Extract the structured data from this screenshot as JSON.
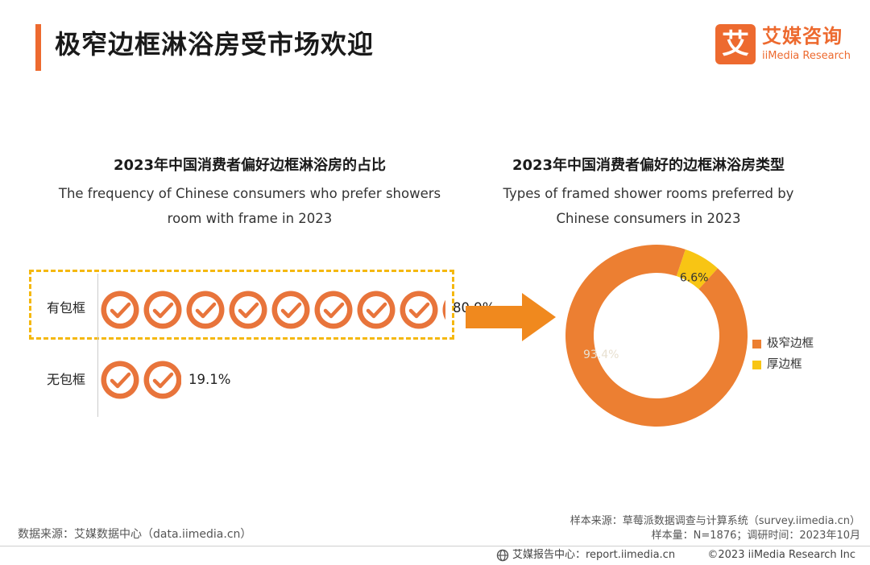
{
  "header": {
    "title": "极窄边框淋浴房受市场欢迎",
    "logo_mark": "艾",
    "logo_cn": "艾媒咨询",
    "logo_en": "iiMedia Research"
  },
  "left_panel": {
    "title_cn": "2023年中国消费者偏好边框淋浴房的占比",
    "title_en_line1": "The frequency of Chinese consumers who prefer showers",
    "title_en_line2": "room with frame in 2023"
  },
  "right_panel": {
    "title_cn": "2023年中国消费者偏好的边框淋浴房类型",
    "title_en_line1": "Types of framed shower rooms preferred by",
    "title_en_line2": "Chinese consumers in 2023"
  },
  "chart_data": [
    {
      "type": "bar",
      "categories": [
        "有包框",
        "无包框"
      ],
      "values": [
        80.9,
        19.1
      ],
      "value_labels": [
        "80.9%",
        "19.1%"
      ],
      "unit": "%",
      "icon": "check-circle-icon",
      "icon_value_unit": 10,
      "colors": {
        "icon": "#e8743b",
        "highlight_box": "#f5b80f"
      }
    },
    {
      "type": "pie",
      "variant": "donut",
      "labels": [
        "极窄边框",
        "厚边框"
      ],
      "values": [
        93.4,
        6.6
      ],
      "value_labels": [
        "93.4%",
        "6.6%"
      ],
      "colors": [
        "#ec7f32",
        "#f8c514"
      ],
      "legend": "right"
    }
  ],
  "footer": {
    "source_left": "数据来源：艾媒数据中心（data.iimedia.cn）",
    "sample_source": "样本来源：草莓派数据调查与计算系统（survey.iimedia.cn）",
    "sample_info": "样本量：N=1876；调研时间：2023年10月",
    "report_center": "艾媒报告中心：report.iimedia.cn",
    "copyright": "©2023  iiMedia Research  Inc"
  },
  "arrow_color": "#f0891e",
  "brand_color": "#ed6a2f"
}
